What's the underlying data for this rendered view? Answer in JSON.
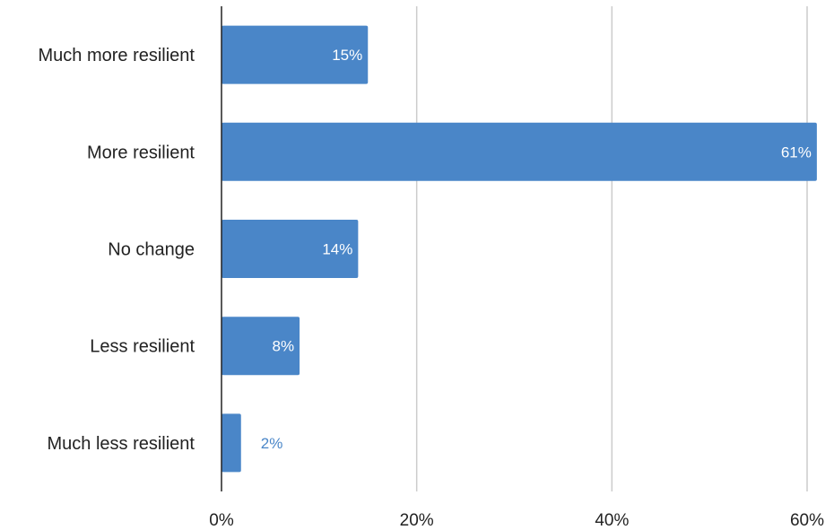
{
  "chart_data": {
    "type": "bar",
    "orientation": "horizontal",
    "categories": [
      "Much more resilient",
      "More resilient",
      "No change",
      "Less resilient",
      "Much less resilient"
    ],
    "values": [
      15,
      61,
      14,
      8,
      2
    ],
    "data_labels": [
      "15%",
      "61%",
      "14%",
      "8%",
      "2%"
    ],
    "xlim": [
      0,
      60
    ],
    "x_ticks": [
      0,
      20,
      40,
      60
    ],
    "x_tick_labels": [
      "0%",
      "20%",
      "40%",
      "60%"
    ],
    "grid": true,
    "colors": {
      "bar": "#4a86c8",
      "grid": "#cccccc",
      "axis": "#222222",
      "label_inside": "#ffffff",
      "label_outside": "#4a86c8"
    }
  }
}
